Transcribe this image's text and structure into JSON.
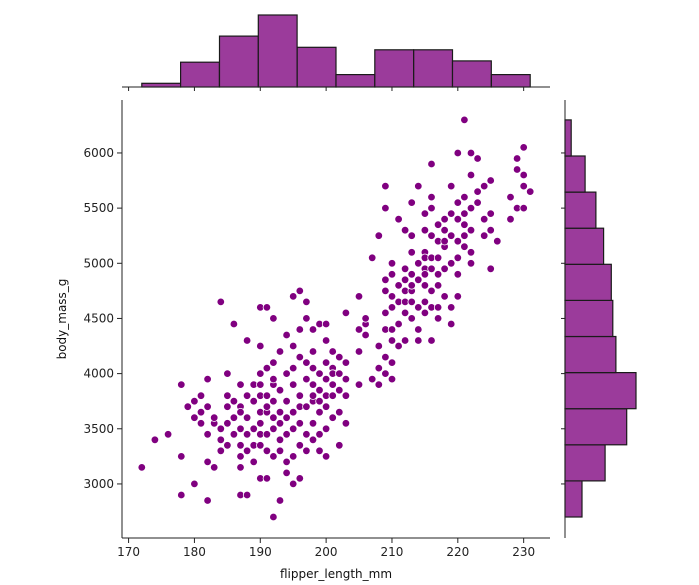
{
  "chart_data": {
    "type": "scatter",
    "subtype": "jointplot",
    "xlabel": "flipper_length_mm",
    "ylabel": "body_mass_g",
    "xlim": [
      169,
      234
    ],
    "ylim": [
      2510,
      6480
    ],
    "xticks": [
      170,
      180,
      190,
      200,
      210,
      220,
      230
    ],
    "yticks": [
      3000,
      3500,
      4000,
      4500,
      5000,
      5500,
      6000
    ],
    "grid": false,
    "colors": {
      "points": "#800080",
      "point_edge": "#ffffff",
      "bars": "#9b3b9b",
      "bar_edge": "#1a1a1a",
      "axis": "#222222"
    },
    "points": [
      [
        172,
        3150
      ],
      [
        174,
        3400
      ],
      [
        176,
        3450
      ],
      [
        178,
        3250
      ],
      [
        178,
        2900
      ],
      [
        178,
        3900
      ],
      [
        179,
        3700
      ],
      [
        180,
        3600
      ],
      [
        180,
        3000
      ],
      [
        180,
        3750
      ],
      [
        181,
        3800
      ],
      [
        181,
        3550
      ],
      [
        181,
        3650
      ],
      [
        182,
        3200
      ],
      [
        182,
        2850
      ],
      [
        182,
        3450
      ],
      [
        182,
        3950
      ],
      [
        182,
        3700
      ],
      [
        183,
        3150
      ],
      [
        183,
        3550
      ],
      [
        183,
        3600
      ],
      [
        184,
        3500
      ],
      [
        184,
        4650
      ],
      [
        184,
        3400
      ],
      [
        184,
        3300
      ],
      [
        185,
        3800
      ],
      [
        185,
        3350
      ],
      [
        185,
        3550
      ],
      [
        185,
        3700
      ],
      [
        185,
        4000
      ],
      [
        186,
        4450
      ],
      [
        186,
        3450
      ],
      [
        186,
        3600
      ],
      [
        186,
        3750
      ],
      [
        187,
        2900
      ],
      [
        187,
        3150
      ],
      [
        187,
        3250
      ],
      [
        187,
        3500
      ],
      [
        187,
        3900
      ],
      [
        187,
        3700
      ],
      [
        187,
        3350
      ],
      [
        187,
        3650
      ],
      [
        188,
        2900
      ],
      [
        188,
        3600
      ],
      [
        188,
        3300
      ],
      [
        188,
        4300
      ],
      [
        188,
        3450
      ],
      [
        188,
        3800
      ],
      [
        189,
        3500
      ],
      [
        189,
        3200
      ],
      [
        189,
        3900
      ],
      [
        189,
        3750
      ],
      [
        189,
        3350
      ],
      [
        190,
        3450
      ],
      [
        190,
        3650
      ],
      [
        190,
        3900
      ],
      [
        190,
        4250
      ],
      [
        190,
        3800
      ],
      [
        190,
        3550
      ],
      [
        190,
        3050
      ],
      [
        190,
        4600
      ],
      [
        190,
        3350
      ],
      [
        190,
        4000
      ],
      [
        191,
        3050
      ],
      [
        191,
        3650
      ],
      [
        191,
        3700
      ],
      [
        191,
        4600
      ],
      [
        191,
        3800
      ],
      [
        191,
        4050
      ],
      [
        191,
        3450
      ],
      [
        191,
        3300
      ],
      [
        192,
        3500
      ],
      [
        192,
        3250
      ],
      [
        192,
        3750
      ],
      [
        192,
        3900
      ],
      [
        192,
        3600
      ],
      [
        192,
        4100
      ],
      [
        192,
        2700
      ],
      [
        192,
        4500
      ],
      [
        192,
        3950
      ],
      [
        193,
        3400
      ],
      [
        193,
        3550
      ],
      [
        193,
        3650
      ],
      [
        193,
        3850
      ],
      [
        193,
        4200
      ],
      [
        193,
        2850
      ],
      [
        193,
        3300
      ],
      [
        194,
        3600
      ],
      [
        194,
        3100
      ],
      [
        194,
        3750
      ],
      [
        194,
        3450
      ],
      [
        194,
        4000
      ],
      [
        194,
        4350
      ],
      [
        194,
        3200
      ],
      [
        195,
        3500
      ],
      [
        195,
        3900
      ],
      [
        195,
        3250
      ],
      [
        195,
        4050
      ],
      [
        195,
        4250
      ],
      [
        195,
        3650
      ],
      [
        195,
        3000
      ],
      [
        195,
        4700
      ],
      [
        196,
        3550
      ],
      [
        196,
        3800
      ],
      [
        196,
        4150
      ],
      [
        196,
        3350
      ],
      [
        196,
        4400
      ],
      [
        196,
        3700
      ],
      [
        196,
        4750
      ],
      [
        196,
        3050
      ],
      [
        197,
        3300
      ],
      [
        197,
        3700
      ],
      [
        197,
        3950
      ],
      [
        197,
        4100
      ],
      [
        197,
        3450
      ],
      [
        197,
        4500
      ],
      [
        197,
        4650
      ],
      [
        198,
        3550
      ],
      [
        198,
        3750
      ],
      [
        198,
        3900
      ],
      [
        198,
        4050
      ],
      [
        198,
        3400
      ],
      [
        198,
        4200
      ],
      [
        198,
        4400
      ],
      [
        198,
        3800
      ],
      [
        199,
        3450
      ],
      [
        199,
        3650
      ],
      [
        199,
        3850
      ],
      [
        199,
        4000
      ],
      [
        199,
        3750
      ],
      [
        199,
        4450
      ],
      [
        199,
        3300
      ],
      [
        200,
        3500
      ],
      [
        200,
        3800
      ],
      [
        200,
        4100
      ],
      [
        200,
        3950
      ],
      [
        200,
        4300
      ],
      [
        200,
        3700
      ],
      [
        200,
        4450
      ],
      [
        200,
        3250
      ],
      [
        201,
        3600
      ],
      [
        201,
        3900
      ],
      [
        201,
        4050
      ],
      [
        201,
        4200
      ],
      [
        201,
        3800
      ],
      [
        201,
        4000
      ],
      [
        202,
        3350
      ],
      [
        202,
        3850
      ],
      [
        202,
        4000
      ],
      [
        202,
        3650
      ],
      [
        202,
        4150
      ],
      [
        203,
        3550
      ],
      [
        203,
        3800
      ],
      [
        203,
        3950
      ],
      [
        203,
        4100
      ],
      [
        203,
        4550
      ],
      [
        205,
        3900
      ],
      [
        205,
        4200
      ],
      [
        205,
        4400
      ],
      [
        205,
        4700
      ],
      [
        206,
        4450
      ],
      [
        206,
        4350
      ],
      [
        206,
        4500
      ],
      [
        207,
        3950
      ],
      [
        207,
        5050
      ],
      [
        208,
        3900
      ],
      [
        208,
        4050
      ],
      [
        208,
        4250
      ],
      [
        208,
        5250
      ],
      [
        209,
        4000
      ],
      [
        209,
        4150
      ],
      [
        209,
        4400
      ],
      [
        209,
        4550
      ],
      [
        209,
        4750
      ],
      [
        209,
        4850
      ],
      [
        209,
        5500
      ],
      [
        209,
        5700
      ],
      [
        210,
        3950
      ],
      [
        210,
        4100
      ],
      [
        210,
        4300
      ],
      [
        210,
        4600
      ],
      [
        210,
        4700
      ],
      [
        210,
        4900
      ],
      [
        210,
        4400
      ],
      [
        210,
        5000
      ],
      [
        211,
        4450
      ],
      [
        211,
        4650
      ],
      [
        211,
        4800
      ],
      [
        211,
        4250
      ],
      [
        211,
        5400
      ],
      [
        212,
        4300
      ],
      [
        212,
        4550
      ],
      [
        212,
        4650
      ],
      [
        212,
        4950
      ],
      [
        212,
        4750
      ],
      [
        212,
        4850
      ],
      [
        212,
        5300
      ],
      [
        213,
        4500
      ],
      [
        213,
        4650
      ],
      [
        213,
        4900
      ],
      [
        213,
        5100
      ],
      [
        213,
        4750
      ],
      [
        213,
        5550
      ],
      [
        213,
        4800
      ],
      [
        213,
        5250
      ],
      [
        214,
        4400
      ],
      [
        214,
        4600
      ],
      [
        214,
        4850
      ],
      [
        214,
        5000
      ],
      [
        214,
        4300
      ],
      [
        214,
        5700
      ],
      [
        215,
        4650
      ],
      [
        215,
        4800
      ],
      [
        215,
        4950
      ],
      [
        215,
        5100
      ],
      [
        215,
        5300
      ],
      [
        215,
        5450
      ],
      [
        215,
        4550
      ],
      [
        215,
        4900
      ],
      [
        215,
        5050
      ],
      [
        216,
        4300
      ],
      [
        216,
        4750
      ],
      [
        216,
        4950
      ],
      [
        216,
        5050
      ],
      [
        216,
        5250
      ],
      [
        216,
        5500
      ],
      [
        216,
        5600
      ],
      [
        216,
        5900
      ],
      [
        216,
        4600
      ],
      [
        217,
        4600
      ],
      [
        217,
        4900
      ],
      [
        217,
        5050
      ],
      [
        217,
        5200
      ],
      [
        217,
        4800
      ],
      [
        217,
        5350
      ],
      [
        217,
        4500
      ],
      [
        218,
        4700
      ],
      [
        218,
        4950
      ],
      [
        218,
        5150
      ],
      [
        218,
        5300
      ],
      [
        218,
        5400
      ],
      [
        218,
        5200
      ],
      [
        219,
        4600
      ],
      [
        219,
        5000
      ],
      [
        219,
        5250
      ],
      [
        219,
        5450
      ],
      [
        219,
        5700
      ],
      [
        219,
        4450
      ],
      [
        220,
        4900
      ],
      [
        220,
        5050
      ],
      [
        220,
        5200
      ],
      [
        220,
        5400
      ],
      [
        220,
        5550
      ],
      [
        220,
        6000
      ],
      [
        220,
        4700
      ],
      [
        221,
        5150
      ],
      [
        221,
        5250
      ],
      [
        221,
        5350
      ],
      [
        221,
        5450
      ],
      [
        221,
        6300
      ],
      [
        221,
        5600
      ],
      [
        222,
        5000
      ],
      [
        222,
        5100
      ],
      [
        222,
        5300
      ],
      [
        222,
        5500
      ],
      [
        222,
        5800
      ],
      [
        222,
        6000
      ],
      [
        223,
        5550
      ],
      [
        223,
        5650
      ],
      [
        223,
        5950
      ],
      [
        224,
        5400
      ],
      [
        224,
        5250
      ],
      [
        224,
        5700
      ],
      [
        225,
        5300
      ],
      [
        225,
        4950
      ],
      [
        225,
        5450
      ],
      [
        225,
        5750
      ],
      [
        226,
        5200
      ],
      [
        228,
        5400
      ],
      [
        228,
        5600
      ],
      [
        229,
        5500
      ],
      [
        229,
        5950
      ],
      [
        229,
        5850
      ],
      [
        230,
        5800
      ],
      [
        230,
        6050
      ],
      [
        230,
        5700
      ],
      [
        230,
        5500
      ],
      [
        231,
        5650
      ]
    ],
    "x_hist": {
      "bin_edges": [
        172,
        177.9,
        183.8,
        189.7,
        195.6,
        201.5,
        207.4,
        213.3,
        219.2,
        225.1,
        231
      ],
      "counts": [
        3,
        20,
        41,
        58,
        32,
        10,
        30,
        30,
        21,
        10
      ]
    },
    "y_hist": {
      "bin_edges": [
        2700,
        3027.27,
        3354.55,
        3681.82,
        4009.09,
        4336.36,
        4663.64,
        4990.91,
        5318.18,
        5645.45,
        5972.73,
        6300
      ],
      "counts": [
        11,
        26,
        40,
        46,
        33,
        31,
        30,
        25,
        20,
        13,
        4
      ]
    }
  }
}
